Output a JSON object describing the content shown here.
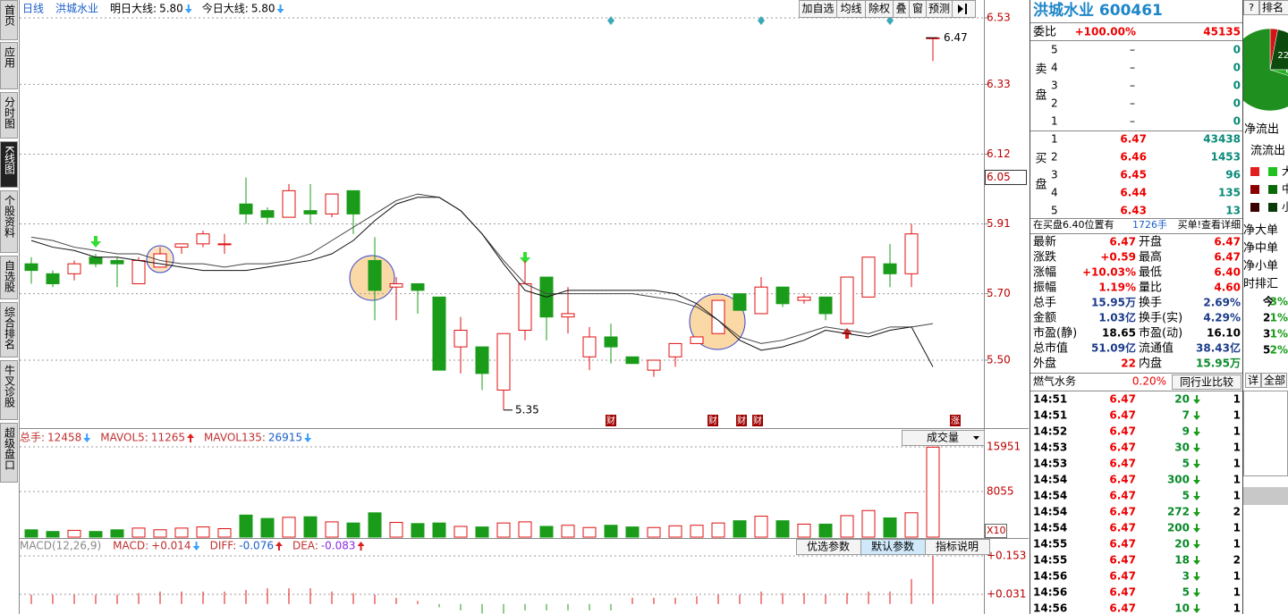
{
  "nav": [
    "首页",
    "应用",
    "分时图",
    "K线图",
    "个股资料",
    "自选股",
    "综合排名",
    "牛叉诊股",
    "超级盘口"
  ],
  "toolbar": {
    "items": [
      {
        "label": "日线"
      },
      {
        "label": "洪城水业"
      },
      {
        "label": "明日大线:",
        "value": "5.80",
        "arrow": "down"
      },
      {
        "label": "今日大线:",
        "value": "5.80",
        "arrow": "down"
      }
    ],
    "buttons": [
      "加自选",
      "均线",
      "除权",
      "叠",
      "窗",
      "预测"
    ]
  },
  "kline": {
    "open": [
      5.79,
      5.76,
      5.76,
      5.81,
      5.8,
      5.73,
      5.78,
      5.84,
      5.85,
      5.85,
      5.97,
      5.95,
      5.93,
      5.95,
      5.94,
      6.01,
      5.8,
      5.72,
      5.73,
      5.69,
      5.54,
      5.54,
      5.41,
      5.59,
      5.75,
      5.63,
      5.51,
      5.57,
      5.51,
      5.47,
      5.51,
      5.55,
      5.58,
      5.7,
      5.64,
      5.72,
      5.68,
      5.69,
      5.61,
      5.69,
      5.79,
      5.76,
      6.47
    ],
    "high": [
      5.81,
      5.77,
      5.8,
      5.82,
      5.81,
      5.81,
      5.84,
      5.85,
      5.89,
      5.88,
      6.05,
      5.96,
      6.03,
      6.03,
      6.0,
      6.01,
      5.87,
      5.75,
      5.73,
      5.69,
      5.63,
      5.54,
      5.58,
      5.8,
      5.75,
      5.72,
      5.6,
      5.61,
      5.51,
      5.5,
      5.55,
      5.57,
      5.68,
      5.7,
      5.75,
      5.72,
      5.7,
      5.69,
      5.75,
      5.81,
      5.85,
      5.91,
      6.47
    ],
    "low": [
      5.73,
      5.72,
      5.74,
      5.78,
      5.72,
      5.73,
      5.78,
      5.82,
      5.84,
      5.82,
      5.91,
      5.91,
      5.93,
      5.91,
      5.93,
      5.88,
      5.62,
      5.62,
      5.64,
      5.47,
      5.46,
      5.41,
      5.35,
      5.56,
      5.56,
      5.58,
      5.47,
      5.49,
      5.49,
      5.45,
      5.48,
      5.55,
      5.58,
      5.65,
      5.64,
      5.66,
      5.67,
      5.62,
      5.61,
      5.69,
      5.72,
      5.72,
      6.4
    ],
    "close": [
      5.77,
      5.73,
      5.79,
      5.79,
      5.79,
      5.8,
      5.82,
      5.85,
      5.88,
      5.85,
      5.94,
      5.93,
      6.01,
      5.94,
      6.0,
      5.94,
      5.71,
      5.73,
      5.71,
      5.47,
      5.59,
      5.46,
      5.58,
      5.73,
      5.63,
      5.64,
      5.57,
      5.54,
      5.49,
      5.5,
      5.55,
      5.57,
      5.68,
      5.65,
      5.72,
      5.67,
      5.69,
      5.64,
      5.75,
      5.81,
      5.76,
      5.88,
      6.47
    ],
    "ma_a": [
      5.87,
      5.86,
      5.84,
      5.83,
      5.82,
      5.82,
      5.8,
      5.79,
      5.79,
      5.78,
      5.79,
      5.79,
      5.8,
      5.82,
      5.86,
      5.9,
      5.94,
      5.98,
      6.0,
      5.99,
      5.95,
      5.88,
      5.8,
      5.73,
      5.7,
      5.7,
      5.7,
      5.7,
      5.7,
      5.69,
      5.68,
      5.66,
      5.62,
      5.57,
      5.55,
      5.56,
      5.58,
      5.6,
      5.59,
      5.58,
      5.6,
      5.6,
      5.61
    ],
    "ma_b": [
      5.86,
      5.84,
      5.83,
      5.81,
      5.81,
      5.8,
      5.79,
      5.78,
      5.77,
      5.77,
      5.77,
      5.78,
      5.79,
      5.8,
      5.82,
      5.86,
      5.92,
      5.97,
      5.99,
      5.99,
      5.95,
      5.88,
      5.79,
      5.71,
      5.69,
      5.71,
      5.71,
      5.71,
      5.71,
      5.71,
      5.7,
      5.67,
      5.62,
      5.56,
      5.53,
      5.54,
      5.56,
      5.59,
      5.58,
      5.57,
      5.59,
      5.6,
      5.48
    ],
    "yticks": [
      6.53,
      6.33,
      6.12,
      5.91,
      {
        "value": 5.7,
        "label": "5.70"
      },
      {
        "value": 5.5,
        "label": "5.50"
      }
    ],
    "ref_price": 6.05,
    "high_label": 6.47,
    "low_label": 5.35,
    "markers": [
      "财",
      "财",
      "财",
      "财",
      "涨"
    ]
  },
  "volume_panel": {
    "header": [
      {
        "label": "总手:",
        "value": "12458",
        "arrow": "down"
      },
      {
        "label": "MAVOL5:",
        "value": "11265",
        "arrow": "up"
      },
      {
        "label": "MAVOL135:",
        "value": "26915",
        "arrow": "down"
      }
    ],
    "selector": "成交量",
    "values": [
      1300,
      1000,
      1200,
      1000,
      1300,
      1600,
      1300,
      1600,
      1800,
      1500,
      3900,
      3300,
      3500,
      3600,
      2700,
      2500,
      4300,
      2600,
      2400,
      2500,
      1900,
      1800,
      2500,
      2700,
      1900,
      2100,
      1700,
      2100,
      1800,
      1700,
      2000,
      2100,
      2500,
      2900,
      3700,
      2900,
      2300,
      2300,
      3800,
      4700,
      3400,
      4300,
      15900
    ],
    "yticks": [
      15951,
      8055
    ],
    "unit": "X10"
  },
  "macd_panel": {
    "header": [
      {
        "label": "MACD(12,26,9)"
      },
      {
        "label": "MACD:",
        "value": "+0.014",
        "arrow": "down"
      },
      {
        "label": "DIFF:",
        "value": "-0.076",
        "arrow": "up"
      },
      {
        "label": "DEA:",
        "value": "-0.083",
        "arrow": "up"
      }
    ],
    "buttons": [
      "优选参数",
      "默认参数",
      "指标说明"
    ],
    "values": [
      0.03,
      0.03,
      0.03,
      0.03,
      0.03,
      0.035,
      0.04,
      0.04,
      0.04,
      0.04,
      0.045,
      0.05,
      0.05,
      0.05,
      0.04,
      0.035,
      0.03,
      0.02,
      0.01,
      -0.01,
      -0.02,
      -0.03,
      -0.03,
      -0.02,
      -0.02,
      -0.02,
      -0.02,
      -0.02,
      0.02,
      0.02,
      0.02,
      0.025,
      0.03,
      0.03,
      0.04,
      0.035,
      0.035,
      0.03,
      0.035,
      0.04,
      0.04,
      0.08,
      0.153
    ],
    "yticks": [
      {
        "value": 0.153,
        "label": "+0.153"
      },
      {
        "value": 0.031,
        "label": "+0.031"
      }
    ]
  },
  "quote": {
    "title": "洪城水业 600461",
    "ratio_label": "委比",
    "ratio": "+100.00%",
    "ratio_volume": "45135",
    "sell_label": "卖盘",
    "sell": [
      [
        "5",
        "–",
        "0"
      ],
      [
        "4",
        "–",
        "0"
      ],
      [
        "3",
        "–",
        "0"
      ],
      [
        "2",
        "–",
        "0"
      ],
      [
        "1",
        "–",
        "0"
      ]
    ],
    "buy_label": "买盘",
    "buy": [
      [
        "1",
        "6.47",
        "43438"
      ],
      [
        "2",
        "6.46",
        "1453"
      ],
      [
        "3",
        "6.45",
        "96"
      ],
      [
        "4",
        "6.44",
        "135"
      ],
      [
        "5",
        "6.43",
        "13"
      ]
    ],
    "notice": "在买盘6.40位置有",
    "notice_volume": "1726手",
    "notice_link": "买单!查看详细",
    "stats": [
      [
        "最新",
        "6.47",
        "开盘",
        "6.47"
      ],
      [
        "涨跌",
        "+0.59",
        "最高",
        "6.47"
      ],
      [
        "涨幅",
        "+10.03%",
        "最低",
        "6.40"
      ],
      [
        "振幅",
        "1.19%",
        "量比",
        "4.60"
      ],
      [
        "总手",
        "15.95万",
        "换手",
        "2.69%"
      ],
      [
        "金额",
        "1.03亿",
        "换手(实)",
        "4.29%"
      ],
      [
        "市盈(静)",
        "18.65",
        "市盈(动)",
        "16.10"
      ],
      [
        "总市值",
        "51.09亿",
        "流通值",
        "38.43亿"
      ],
      [
        "外盘",
        "22",
        "内盘",
        "15.95万"
      ]
    ],
    "industry": "燃气水务",
    "industry_change": "0.20%",
    "industry_link": "同行业比较",
    "ticks": [
      [
        "14:51",
        "6.47",
        "20",
        "1"
      ],
      [
        "14:51",
        "6.47",
        "7",
        "1"
      ],
      [
        "14:52",
        "6.47",
        "9",
        "1"
      ],
      [
        "14:53",
        "6.47",
        "30",
        "1"
      ],
      [
        "14:53",
        "6.47",
        "5",
        "1"
      ],
      [
        "14:54",
        "6.47",
        "300",
        "1"
      ],
      [
        "14:54",
        "6.47",
        "5",
        "1"
      ],
      [
        "14:54",
        "6.47",
        "272",
        "2"
      ],
      [
        "14:54",
        "6.47",
        "200",
        "1"
      ],
      [
        "14:55",
        "6.47",
        "20",
        "1"
      ],
      [
        "14:55",
        "6.47",
        "18",
        "2"
      ],
      [
        "14:56",
        "6.47",
        "3",
        "1"
      ],
      [
        "14:56",
        "6.47",
        "5",
        "1"
      ],
      [
        "14:56",
        "6.47",
        "10",
        "1"
      ]
    ]
  },
  "side": {
    "help": "?",
    "rank": "排名",
    "pie": [
      {
        "value": 3,
        "color": "#d41414"
      },
      {
        "value": 22,
        "label": "22%",
        "color": "#0d4a0d"
      },
      {
        "value": 5,
        "label": "5%",
        "color": "#22b022"
      },
      {
        "value": 70,
        "color": "#1f8f1f"
      }
    ],
    "flow_out": "净流出",
    "flow": "流流出",
    "sizes": [
      "大",
      "中",
      "小"
    ],
    "net": [
      "净大单",
      "净中单",
      "净小单"
    ],
    "rank_title": "时排汇",
    "rank_rows": [
      "今",
      "2",
      "3",
      "5"
    ],
    "rank_pcts": [
      "3%",
      "1%",
      "1%",
      "2%"
    ],
    "tabs": [
      "详",
      "全部"
    ]
  }
}
